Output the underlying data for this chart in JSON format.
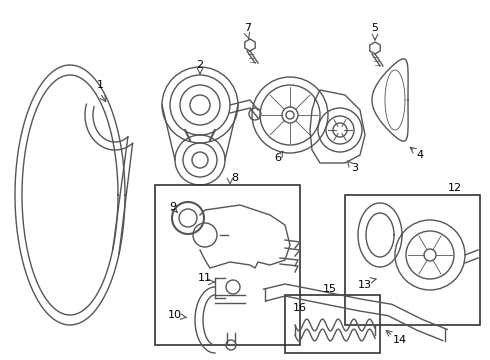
{
  "bg_color": "#ffffff",
  "line_color": "#555555",
  "label_color": "#000000",
  "box_color": "#333333",
  "figsize": [
    4.9,
    3.6
  ],
  "dpi": 100
}
